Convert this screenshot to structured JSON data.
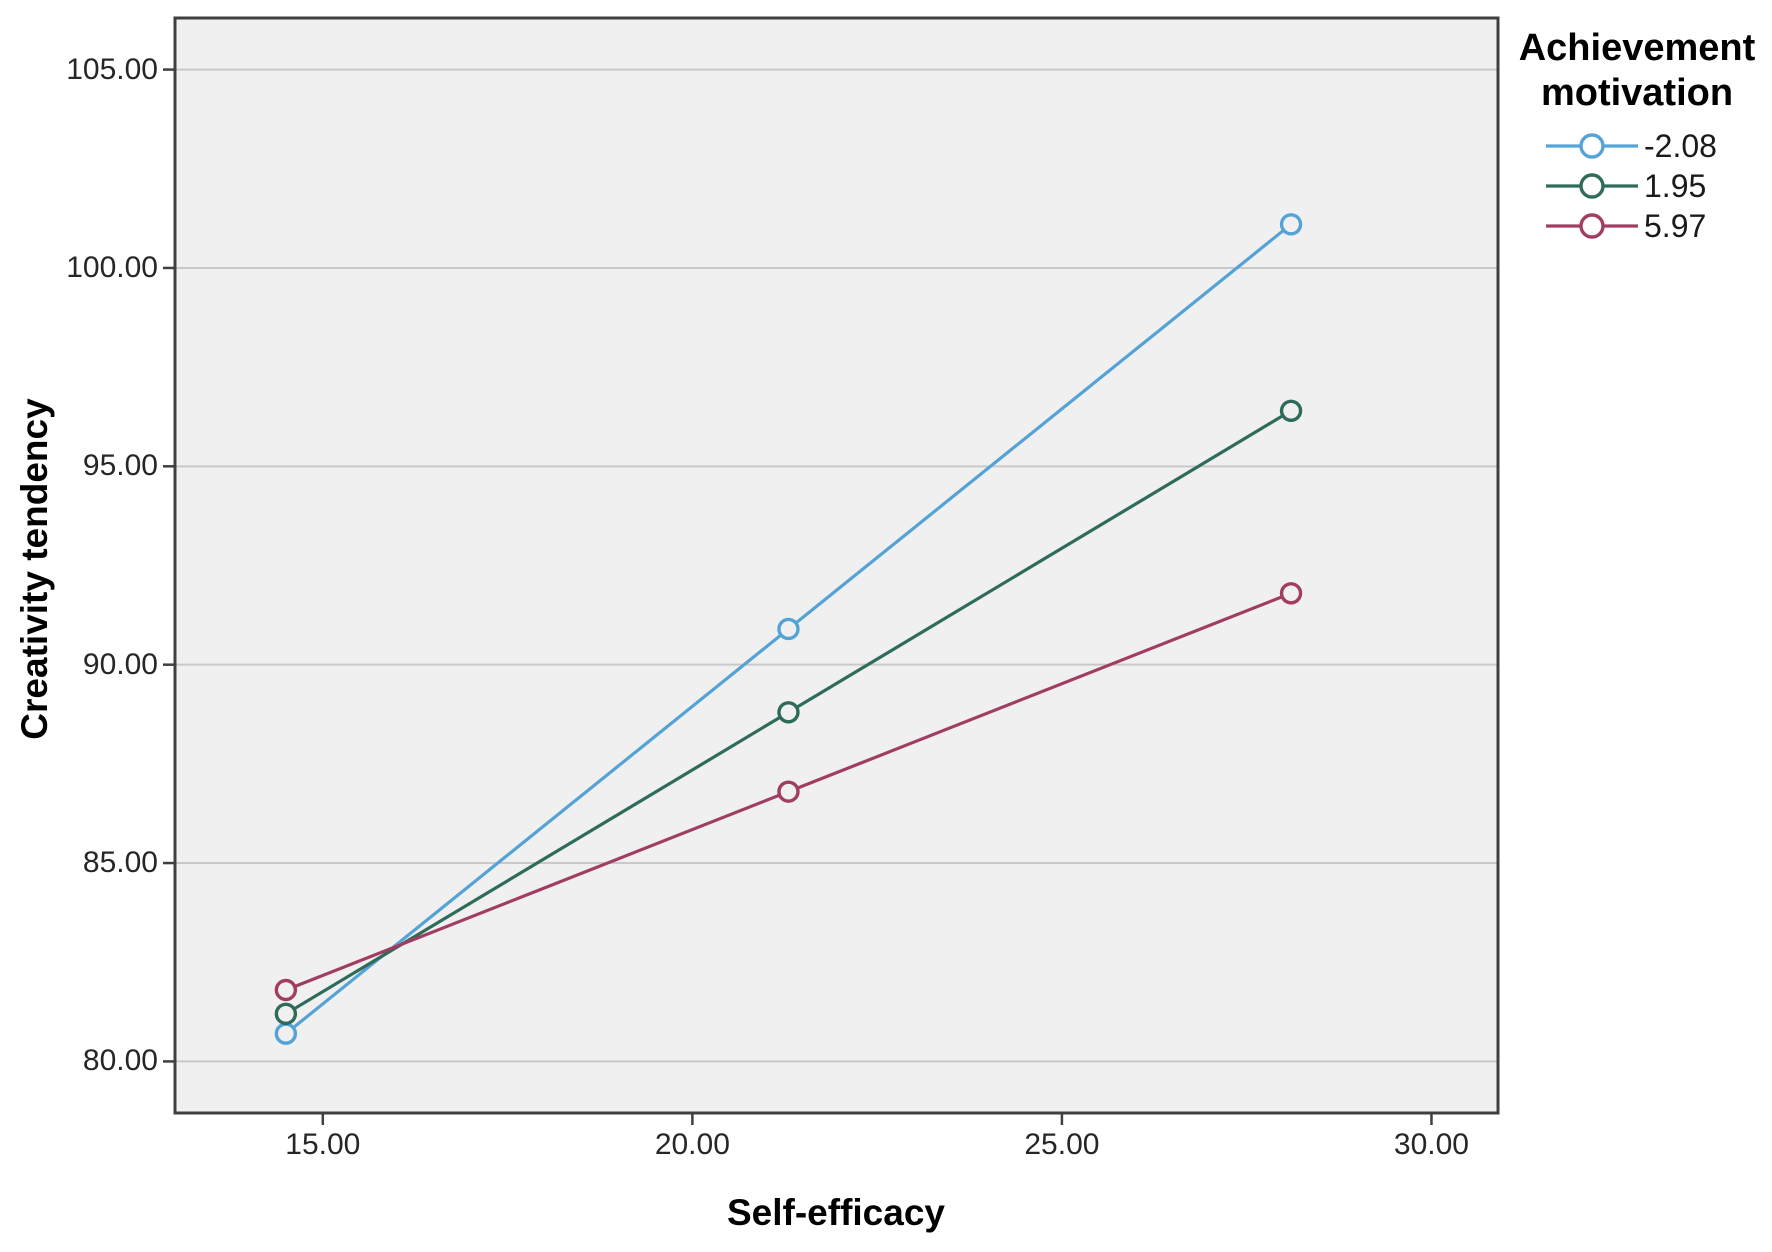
{
  "chart_data": {
    "type": "line",
    "title": "",
    "xlabel": "Self-efficacy",
    "ylabel": "Creativity tendency",
    "legend_title": "Achievement motivation",
    "legend_position": "outside-top-right",
    "x": [
      14.5,
      21.3,
      28.1
    ],
    "series": [
      {
        "name": "-2.08",
        "color": "#55A3D6",
        "values": [
          80.7,
          90.9,
          101.1
        ]
      },
      {
        "name": "1.95",
        "color": "#2E6B5B",
        "values": [
          81.2,
          88.8,
          96.4
        ]
      },
      {
        "name": "5.97",
        "color": "#A13D62",
        "values": [
          81.8,
          86.8,
          91.8
        ]
      }
    ],
    "x_ticks": [
      "15.00",
      "20.00",
      "25.00",
      "30.00"
    ],
    "x_tick_values": [
      15,
      20,
      25,
      30
    ],
    "y_ticks": [
      "80.00",
      "85.00",
      "90.00",
      "95.00",
      "100.00",
      "105.00"
    ],
    "y_tick_values": [
      80,
      85,
      90,
      95,
      100,
      105
    ],
    "xlim": [
      13.0,
      30.9
    ],
    "ylim": [
      78.7,
      106.3
    ],
    "grid": "horizontal",
    "marker": "open-circle",
    "colors": {
      "plot_bg": "#F0F0F0",
      "grid_line": "#C9C9C9",
      "plot_border": "#3F3F3F",
      "tick_text": "#262626",
      "title_text": "#000000"
    }
  }
}
